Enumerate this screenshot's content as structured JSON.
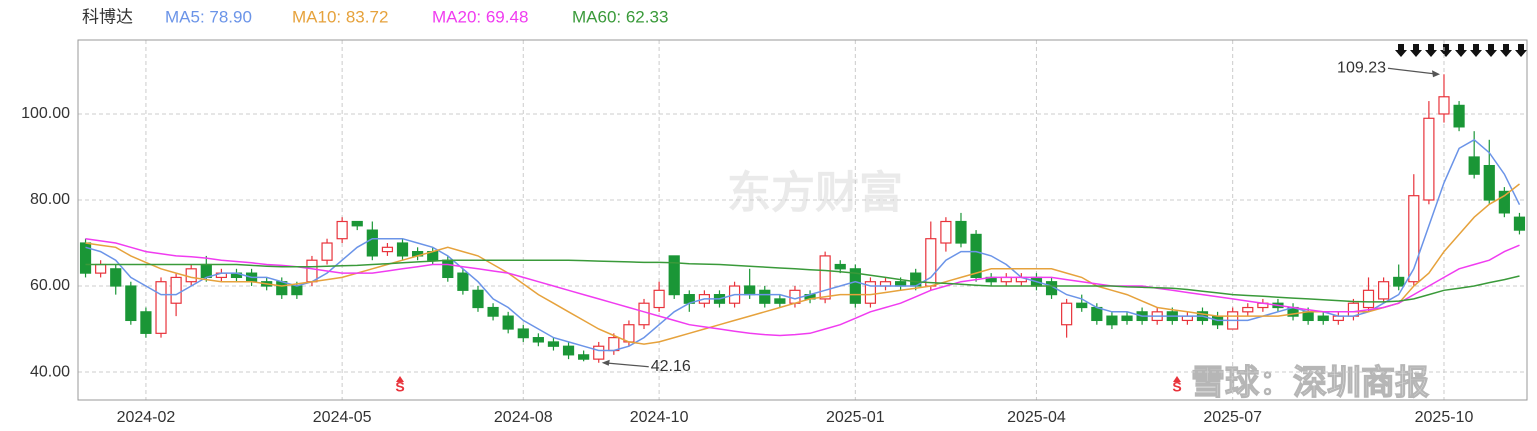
{
  "chart_data": {
    "type": "candlestick",
    "title": "科博达",
    "categories": [
      null,
      null,
      null,
      null,
      "2024-02",
      null,
      null,
      null,
      null,
      null,
      null,
      null,
      null,
      null,
      null,
      null,
      null,
      "2024-05",
      null,
      null,
      null,
      null,
      null,
      null,
      null,
      null,
      null,
      null,
      null,
      "2024-08",
      null,
      null,
      null,
      null,
      null,
      null,
      null,
      null,
      "2024-10",
      null,
      null,
      null,
      null,
      null,
      null,
      null,
      null,
      null,
      null,
      null,
      null,
      "2025-01",
      null,
      null,
      null,
      null,
      null,
      null,
      null,
      null,
      null,
      null,
      null,
      "2025-04",
      null,
      null,
      null,
      null,
      null,
      null,
      null,
      null,
      null,
      null,
      null,
      null,
      "2025-07",
      null,
      null,
      null,
      null,
      null,
      null,
      null,
      null,
      null,
      null,
      null,
      null,
      null,
      "2025-10",
      null,
      null,
      null,
      null,
      null
    ],
    "open": [
      70,
      63,
      64,
      60,
      54,
      49,
      56,
      61,
      65,
      62,
      63,
      63,
      61,
      61,
      60,
      61,
      66,
      71,
      75,
      73,
      68,
      70,
      68,
      68,
      66,
      63,
      59,
      55,
      53,
      50,
      48,
      47,
      46,
      44,
      43,
      45,
      47,
      51,
      55,
      67,
      58,
      56,
      58,
      56,
      60,
      59,
      57,
      56,
      58,
      57,
      65,
      64,
      56,
      60,
      61,
      63,
      60,
      70,
      75,
      72,
      62,
      61,
      61,
      62,
      61,
      51,
      56,
      55,
      53,
      53,
      54,
      52,
      54,
      52,
      54,
      53,
      50,
      54,
      55,
      56,
      55,
      54,
      53,
      52,
      53,
      55,
      57,
      62,
      61,
      80,
      100,
      102,
      90,
      88,
      82,
      76
    ],
    "high": [
      71,
      66,
      65,
      61,
      55,
      62,
      63,
      65,
      67,
      64,
      64,
      64,
      62,
      62,
      61,
      67,
      71,
      76,
      75,
      75,
      70,
      71,
      69,
      69,
      67,
      64,
      60,
      56,
      54,
      51,
      49,
      48,
      47,
      45,
      47,
      49,
      52,
      57,
      61,
      67,
      59,
      59,
      59,
      61,
      64,
      60,
      58,
      60,
      59,
      68,
      66,
      65,
      62,
      62,
      62,
      64,
      75,
      76,
      77,
      73,
      63,
      63,
      63,
      63,
      62,
      57,
      58,
      56,
      54,
      54,
      55,
      55,
      55,
      54,
      55,
      54,
      55,
      56,
      57,
      57,
      56,
      55,
      54,
      54,
      57,
      62,
      62,
      65,
      86,
      103,
      109.23,
      103,
      96,
      94,
      83,
      77
    ],
    "low": [
      62,
      62,
      58,
      51,
      48,
      48,
      53,
      60,
      61,
      61,
      61,
      60,
      59,
      57,
      57,
      60,
      65,
      70,
      73,
      66,
      67,
      66,
      66,
      65,
      61,
      58,
      54,
      52,
      49,
      47,
      46,
      45,
      43,
      42.5,
      42.16,
      44,
      46,
      50,
      54,
      57,
      54,
      55,
      55,
      55,
      57,
      55,
      55,
      55,
      56,
      56,
      63,
      55,
      55,
      59,
      59,
      59,
      59,
      68,
      69,
      61,
      60,
      60,
      60,
      59,
      57,
      48,
      54,
      51,
      50,
      51,
      51,
      51,
      51,
      51,
      51,
      50,
      50,
      53,
      54,
      54,
      52,
      51,
      51,
      51,
      52,
      54,
      56,
      59,
      60,
      79,
      98,
      96,
      85,
      79,
      76,
      72
    ],
    "close": [
      63,
      65,
      60,
      52,
      49,
      61,
      62,
      64,
      62,
      63,
      62,
      61,
      60,
      58,
      58,
      66,
      70,
      75,
      74,
      67,
      69,
      67,
      67,
      66,
      62,
      59,
      55,
      53,
      50,
      48,
      47,
      46,
      44,
      43,
      46,
      48,
      51,
      56,
      59,
      58,
      56,
      58,
      56,
      60,
      58,
      56,
      56,
      59,
      57,
      67,
      64,
      56,
      61,
      61,
      60,
      60,
      71,
      75,
      70,
      62,
      61,
      62,
      62,
      60,
      58,
      56,
      55,
      52,
      51,
      52,
      52,
      54,
      52,
      53,
      52,
      51,
      54,
      55,
      56,
      55,
      53,
      52,
      52,
      53,
      56,
      59,
      61,
      60,
      81,
      99,
      104,
      97,
      86,
      80,
      77,
      73
    ],
    "up_color": "#e8333b",
    "down_color": "#1a9636",
    "series": [
      {
        "name": "MA5: 78.90",
        "color": "#6b94e8",
        "values": [
          69,
          68,
          66,
          62,
          60,
          58,
          58,
          60,
          62,
          63,
          63,
          62,
          62,
          61,
          60,
          61,
          63,
          66,
          69,
          71,
          71,
          71,
          70,
          69,
          67,
          64,
          61,
          57,
          55,
          52,
          50,
          48,
          47,
          46,
          45,
          45,
          46,
          48,
          51,
          54,
          56,
          57,
          57,
          58,
          58,
          58,
          58,
          57,
          58,
          59,
          60,
          61,
          60,
          60,
          60,
          60,
          62,
          66,
          68,
          68,
          67,
          65,
          62,
          61,
          60,
          58,
          57,
          55,
          54,
          54,
          53,
          53,
          53,
          53,
          53,
          52,
          52,
          52,
          53,
          54,
          55,
          54,
          54,
          53,
          53,
          54,
          56,
          58,
          64,
          74,
          84,
          92,
          94,
          91,
          86,
          78.9
        ]
      },
      {
        "name": "MA10: 83.72",
        "color": "#e6a23c",
        "values": [
          70,
          69.5,
          69,
          67,
          65.5,
          64,
          63,
          62,
          61.5,
          61,
          61,
          61,
          60.5,
          60,
          60.5,
          61,
          61.5,
          62,
          63,
          64,
          65,
          66,
          67,
          68,
          69,
          68,
          67,
          65,
          63,
          60.5,
          58,
          56,
          54,
          52,
          50,
          48.5,
          47,
          46.5,
          47,
          48,
          49,
          50,
          51,
          52,
          53,
          54,
          55,
          56,
          57,
          57.5,
          58,
          58,
          58,
          58.5,
          59,
          59.5,
          60,
          61,
          62,
          63,
          64,
          64,
          64,
          64,
          64,
          63,
          62,
          60,
          59,
          58,
          56.5,
          55,
          54.5,
          54,
          53.5,
          53,
          53,
          53,
          53,
          53,
          53.5,
          54,
          54,
          54,
          54,
          54,
          55,
          56,
          60,
          63,
          68,
          72,
          76,
          79,
          81,
          83.72
        ]
      },
      {
        "name": "MA20: 69.48",
        "color": "#f03cf0",
        "values": [
          71,
          70.5,
          70,
          69,
          68,
          67.5,
          67,
          66.8,
          66.5,
          66,
          65.7,
          65.4,
          65,
          64.8,
          64.5,
          64,
          63.5,
          63,
          63,
          63,
          63.5,
          64,
          64.5,
          65,
          65,
          64.5,
          64,
          63.5,
          63,
          62,
          61,
          60,
          59,
          58,
          57,
          56,
          55,
          54,
          53,
          52,
          51,
          50.5,
          50,
          49.5,
          49,
          48.7,
          48.5,
          48.7,
          49,
          50,
          51,
          52.5,
          54,
          55,
          56,
          57.5,
          59,
          60,
          61,
          61.5,
          62,
          62,
          62,
          62,
          62,
          61.5,
          61,
          60.5,
          60,
          60,
          60,
          59.5,
          59,
          58.5,
          58,
          57.5,
          57,
          56.5,
          56,
          55.5,
          55,
          54.5,
          54,
          54,
          54,
          54.5,
          55,
          56,
          58,
          60,
          62,
          64,
          65,
          66,
          68,
          69.48
        ]
      },
      {
        "name": "MA60: 62.33",
        "color": "#3a9a3a",
        "values": [
          65,
          65,
          65,
          65,
          65,
          65,
          65,
          65,
          65,
          65,
          65,
          64.8,
          64.6,
          64.5,
          64.5,
          64.5,
          64.6,
          64.7,
          64.8,
          65,
          65.2,
          65.4,
          65.6,
          65.8,
          66,
          66,
          66,
          66,
          66,
          66,
          66,
          66,
          66,
          65.9,
          65.8,
          65.7,
          65.6,
          65.5,
          65.5,
          65.4,
          65.2,
          65.1,
          65,
          64.8,
          64.6,
          64.4,
          64.2,
          64,
          63.8,
          63.6,
          63.3,
          63,
          62.5,
          62,
          61.5,
          61,
          60.8,
          60.6,
          60.4,
          60.2,
          60,
          60,
          60,
          60,
          60,
          60,
          60,
          60,
          60,
          59.8,
          59.7,
          59.6,
          59.5,
          59.2,
          58.8,
          58.4,
          58,
          57.8,
          57.6,
          57.4,
          57.2,
          57,
          56.8,
          56.6,
          56.4,
          56.3,
          56.3,
          56.5,
          57,
          58,
          59,
          59.5,
          60,
          60.8,
          61.5,
          62.33
        ]
      }
    ],
    "ylim": [
      33.5,
      117.2
    ],
    "yticks": [
      {
        "value": 40,
        "label": "40.00"
      },
      {
        "value": 60,
        "label": "60.00"
      },
      {
        "value": 80,
        "label": "80.00"
      },
      {
        "value": 100,
        "label": "100.00"
      }
    ],
    "grid": true,
    "annotations": {
      "high": "109.23",
      "low": "42.16"
    },
    "signals": [
      "S",
      "S"
    ],
    "watermarks": [
      "东方财富",
      "雪球：深圳商报"
    ]
  }
}
